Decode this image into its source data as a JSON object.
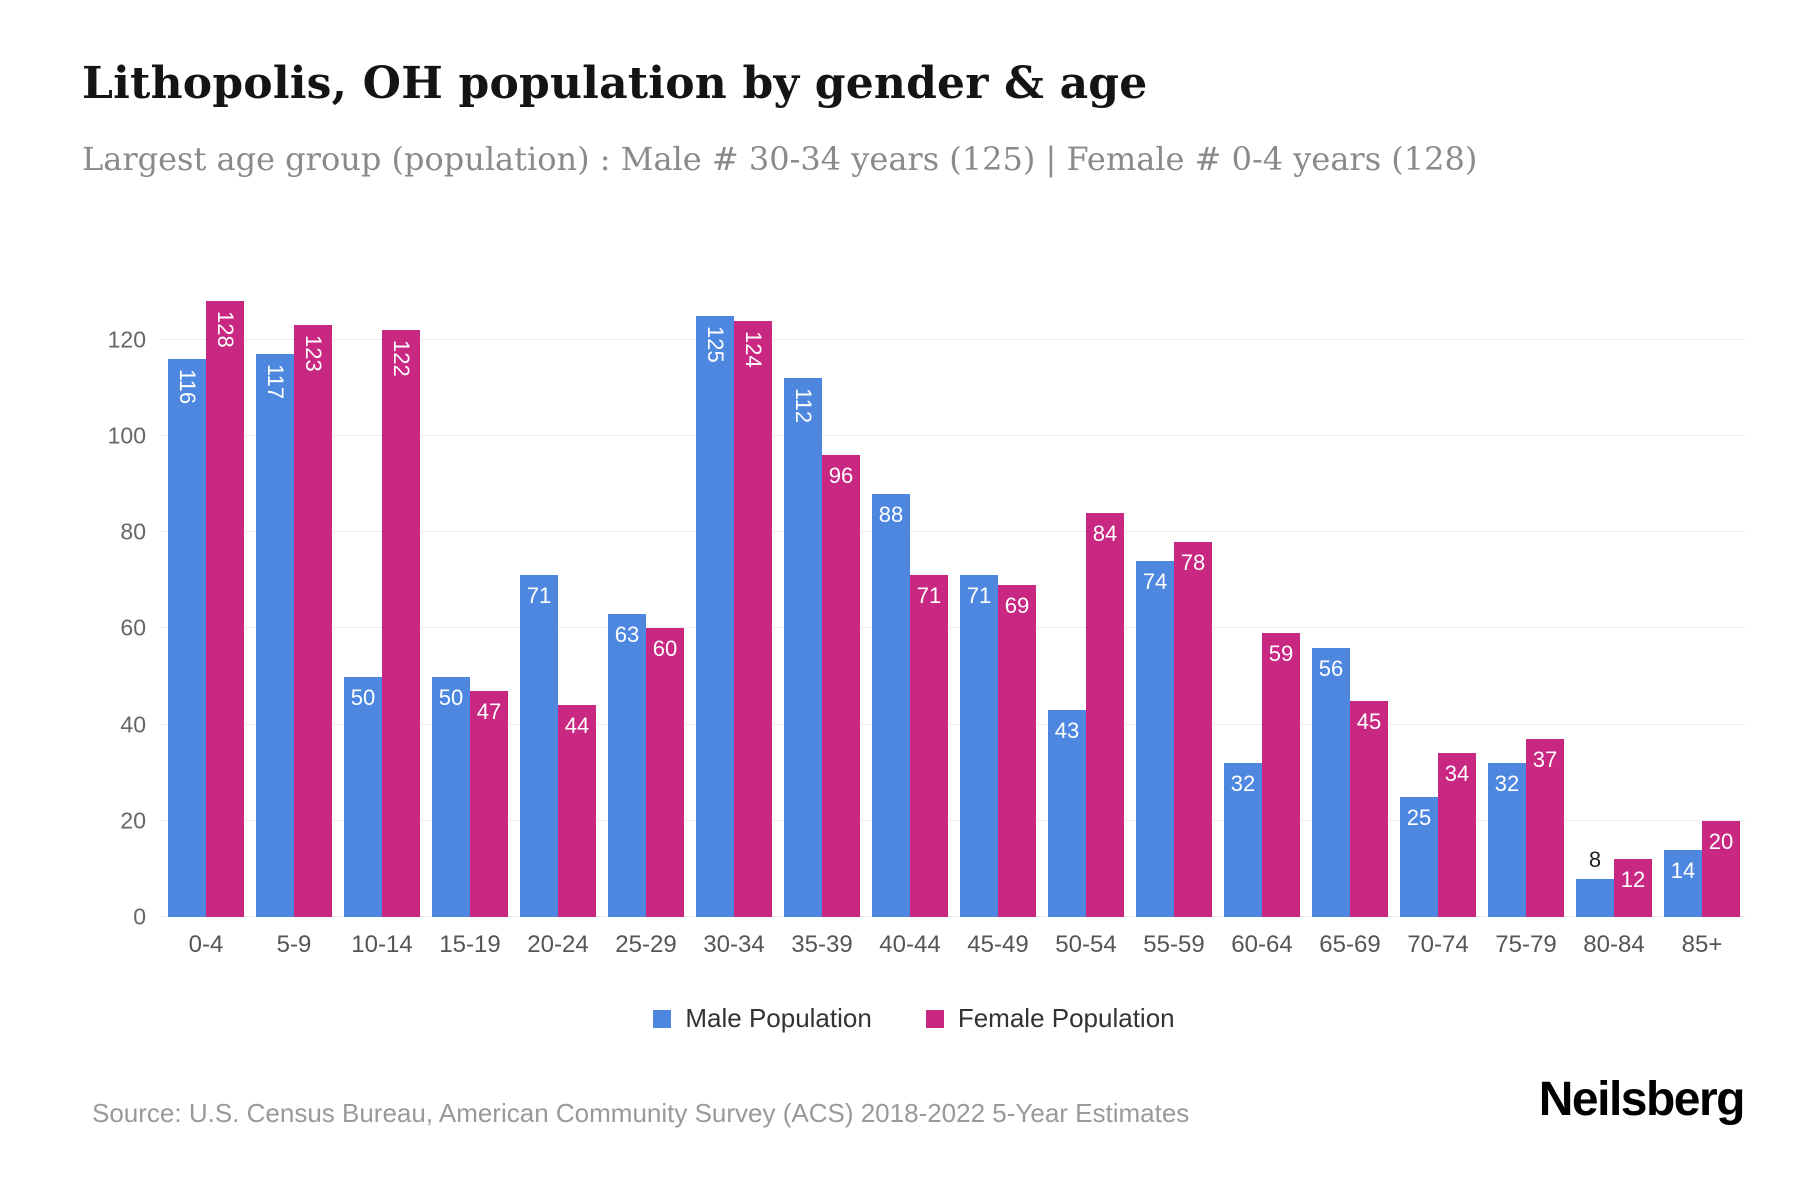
{
  "page": {
    "title": "Lithopolis, OH population by gender & age",
    "subtitle": "Largest age group (population) : Male # 30-34 years (125) | Female # 0-4 years (128)",
    "source": "Source: U.S. Census Bureau, American Community Survey (ACS) 2018-2022 5-Year Estimates",
    "brand": "Neilsberg"
  },
  "colors": {
    "male": "#4e87e0",
    "female": "#c82782",
    "grid": "#ededed",
    "axis_text": "#666666",
    "title_text": "#141414",
    "subtitle_text": "#8a8a8a"
  },
  "legend": {
    "male_label": "Male Population",
    "female_label": "Female Population"
  },
  "chart_data": {
    "type": "bar",
    "title": "Lithopolis, OH population by gender & age",
    "subtitle": "Largest age group (population) : Male # 30-34 years (125) | Female # 0-4 years (128)",
    "xlabel": "",
    "ylabel": "",
    "grid": true,
    "legend_position": "bottom",
    "ylim": [
      0,
      132
    ],
    "yticks": [
      0,
      20,
      40,
      60,
      80,
      100,
      120
    ],
    "categories": [
      "0-4",
      "5-9",
      "10-14",
      "15-19",
      "20-24",
      "25-29",
      "30-34",
      "35-39",
      "40-44",
      "45-49",
      "50-54",
      "55-59",
      "60-64",
      "65-69",
      "70-74",
      "75-79",
      "80-84",
      "85+"
    ],
    "series": [
      {
        "name": "Male Population",
        "values": [
          116,
          117,
          50,
          50,
          71,
          63,
          125,
          112,
          88,
          71,
          43,
          74,
          32,
          56,
          25,
          32,
          8,
          14
        ]
      },
      {
        "name": "Female Population",
        "values": [
          128,
          123,
          122,
          47,
          44,
          60,
          124,
          96,
          71,
          69,
          84,
          78,
          59,
          45,
          34,
          37,
          12,
          20
        ]
      }
    ]
  }
}
